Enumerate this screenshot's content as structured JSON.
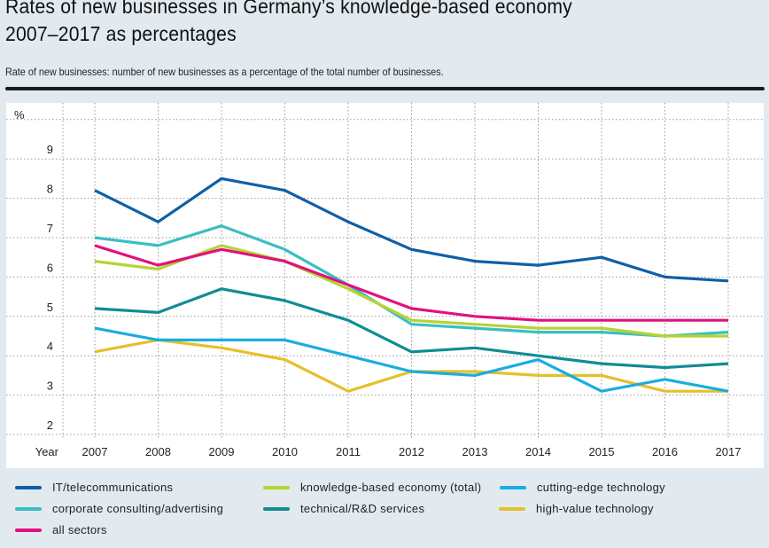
{
  "header": {
    "title_line1": "Rates of new businesses in Germany’s knowledge-based economy",
    "title_line2": "2007–2017 as percentages",
    "subtitle": "Rate of new businesses: number of new businesses as a percentage of the total number of businesses."
  },
  "chart_data": {
    "type": "line",
    "title": "Rates of new businesses in Germany’s knowledge-based economy 2007–2017 as percentages",
    "subtitle": "Rate of new businesses: number of new businesses as a percentage of the total number of businesses.",
    "xlabel": "Year",
    "ylabel": "%",
    "x": [
      "2007",
      "2008",
      "2009",
      "2010",
      "2011",
      "2012",
      "2013",
      "2014",
      "2015",
      "2016",
      "2017"
    ],
    "y_ticks": [
      "2",
      "3",
      "4",
      "5",
      "6",
      "7",
      "8",
      "9"
    ],
    "ylim": [
      2,
      10
    ],
    "grid": true,
    "legend_position": "bottom",
    "series": [
      {
        "name": "IT/telecommunications",
        "color": "#0f5fa6",
        "values": [
          8.2,
          7.4,
          8.5,
          8.2,
          7.4,
          6.7,
          6.4,
          6.3,
          6.5,
          6.0,
          5.9
        ]
      },
      {
        "name": "corporate consulting/advertising",
        "color": "#38bfc4",
        "values": [
          7.0,
          6.8,
          7.3,
          6.7,
          5.8,
          4.8,
          4.7,
          4.6,
          4.6,
          4.5,
          4.6
        ]
      },
      {
        "name": "knowledge-based economy (total)",
        "color": "#b5d334",
        "values": [
          6.4,
          6.2,
          6.8,
          6.4,
          5.7,
          4.9,
          4.8,
          4.7,
          4.7,
          4.5,
          4.5
        ]
      },
      {
        "name": "all sectors",
        "color": "#e0117f",
        "values": [
          6.8,
          6.3,
          6.7,
          6.4,
          5.8,
          5.2,
          5.0,
          4.9,
          4.9,
          4.9,
          4.9
        ]
      },
      {
        "name": "technical/R&D services",
        "color": "#128c93",
        "values": [
          5.2,
          5.1,
          5.7,
          5.4,
          4.9,
          4.1,
          4.2,
          4.0,
          3.8,
          3.7,
          3.8
        ]
      },
      {
        "name": "cutting-edge technology",
        "color": "#19ade0",
        "values": [
          4.7,
          4.4,
          4.4,
          4.4,
          4.0,
          3.6,
          3.5,
          3.9,
          3.1,
          3.4,
          3.1
        ]
      },
      {
        "name": "high-value technology",
        "color": "#e5c02a",
        "values": [
          4.1,
          4.4,
          4.2,
          3.9,
          3.1,
          3.6,
          3.6,
          3.5,
          3.5,
          3.1,
          3.1
        ]
      }
    ]
  },
  "legend": [
    {
      "label": "IT/telecommunications",
      "color": "#0f5fa6"
    },
    {
      "label": "corporate consulting/advertising",
      "color": "#38bfc4"
    },
    {
      "label": "all sectors",
      "color": "#e0117f"
    },
    {
      "label": "knowledge-based economy (total)",
      "color": "#b5d334"
    },
    {
      "label": "technical/R&D services",
      "color": "#128c93"
    },
    {
      "label": "cutting-edge technology",
      "color": "#19ade0"
    },
    {
      "label": "high-value technology",
      "color": "#e5c02a"
    }
  ]
}
